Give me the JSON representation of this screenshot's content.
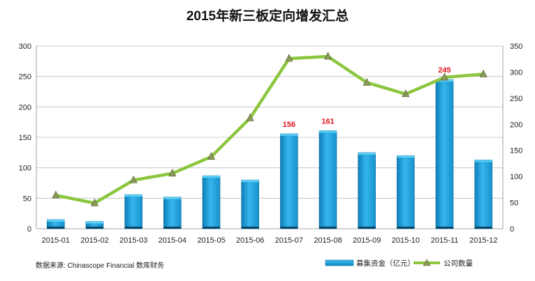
{
  "chart_data": {
    "type": "bar",
    "title": "2015年新三板定向增发汇总",
    "categories": [
      "2015-01",
      "2015-02",
      "2015-03",
      "2015-04",
      "2015-05",
      "2015-06",
      "2015-07",
      "2015-08",
      "2015-09",
      "2015-10",
      "2015-11",
      "2015-12"
    ],
    "series": [
      {
        "name": "募集资金（亿元）",
        "type": "bar",
        "axis": "left",
        "values": [
          15,
          12,
          56,
          52,
          87,
          80,
          156,
          161,
          125,
          120,
          245,
          113
        ],
        "color": "#29a8e0"
      },
      {
        "name": "公司数量",
        "type": "line",
        "axis": "right",
        "values": [
          64,
          49,
          93,
          106,
          138,
          212,
          326,
          330,
          280,
          258,
          290,
          296
        ],
        "color": "#8cc63f"
      }
    ],
    "data_labels": [
      {
        "index": 6,
        "text": "156"
      },
      {
        "index": 7,
        "text": "161"
      },
      {
        "index": 10,
        "text": "245"
      }
    ],
    "y_left": {
      "min": 0,
      "max": 300,
      "step": 50,
      "ticks": [
        "0",
        "50",
        "100",
        "150",
        "200",
        "250",
        "300"
      ]
    },
    "y_right": {
      "min": 0,
      "max": 350,
      "step": 50,
      "ticks": [
        "0",
        "50",
        "100",
        "150",
        "200",
        "250",
        "300",
        "350"
      ]
    },
    "legend": {
      "position": "bottom-right",
      "items": [
        "募集资金（亿元）",
        "公司数量"
      ]
    },
    "source": "数据来源: Chinascope Financial 数库财务",
    "grid": true
  },
  "colors": {
    "bar": "#29a8e0",
    "line": "#8cc63f",
    "label": "#e0141e",
    "grid": "#bdbdbd"
  }
}
